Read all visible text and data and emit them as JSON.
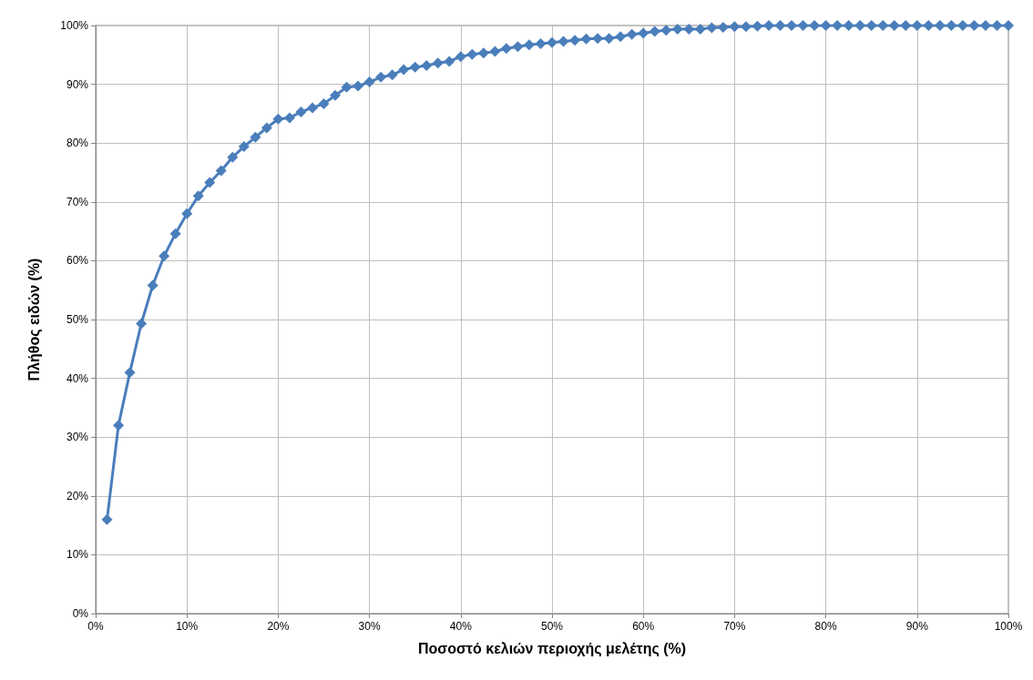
{
  "chart_data": {
    "type": "line",
    "xlabel": "Ποσοστό κελιών περιοχής μελέτης (%)",
    "ylabel": "Πλήθος ειδών (%)",
    "x": [
      1.25,
      2.5,
      3.75,
      5,
      6.25,
      7.5,
      8.75,
      10,
      11.25,
      12.5,
      13.75,
      15,
      16.25,
      17.5,
      18.75,
      20,
      21.25,
      22.5,
      23.75,
      25,
      26.25,
      27.5,
      28.75,
      30,
      31.25,
      32.5,
      33.75,
      35,
      36.25,
      37.5,
      38.75,
      40,
      41.25,
      42.5,
      43.75,
      45,
      46.25,
      47.5,
      48.75,
      50,
      51.25,
      52.5,
      53.75,
      55,
      56.25,
      57.5,
      58.75,
      60,
      61.25,
      62.5,
      63.75,
      65,
      66.25,
      67.5,
      68.75,
      70,
      71.25,
      72.5,
      73.75,
      75,
      76.25,
      77.5,
      78.75,
      80,
      81.25,
      82.5,
      83.75,
      85,
      86.25,
      87.5,
      88.75,
      90,
      91.25,
      92.5,
      93.75,
      95,
      96.25,
      97.5,
      98.75,
      100
    ],
    "series": [
      {
        "color": "#4a7ebb",
        "values": [
          16,
          32,
          41,
          49.3,
          55.8,
          60.8,
          64.6,
          68,
          71,
          73.3,
          75.3,
          77.6,
          79.4,
          81,
          82.6,
          84.1,
          84.3,
          85.3,
          86,
          86.7,
          88.1,
          89.5,
          89.7,
          90.4,
          91.2,
          91.6,
          92.5,
          92.9,
          93.2,
          93.6,
          93.9,
          94.7,
          95.1,
          95.3,
          95.6,
          96.1,
          96.4,
          96.7,
          96.9,
          97.1,
          97.3,
          97.5,
          97.7,
          97.8,
          97.8,
          98.1,
          98.5,
          98.7,
          99,
          99.2,
          99.4,
          99.4,
          99.4,
          99.6,
          99.7,
          99.8,
          99.8,
          99.9,
          100,
          100,
          100,
          100,
          100,
          100,
          100,
          100,
          100,
          100,
          100,
          100,
          100,
          100,
          100,
          100,
          100,
          100,
          100,
          100,
          100,
          100
        ]
      }
    ],
    "xlim": [
      0,
      100
    ],
    "ylim": [
      0,
      100
    ],
    "xticks": [
      {
        "value": 0,
        "label": "0%"
      },
      {
        "value": 10,
        "label": "10%"
      },
      {
        "value": 20,
        "label": "20%"
      },
      {
        "value": 30,
        "label": "30%"
      },
      {
        "value": 40,
        "label": "40%"
      },
      {
        "value": 50,
        "label": "50%"
      },
      {
        "value": 60,
        "label": "60%"
      },
      {
        "value": 70,
        "label": "70%"
      },
      {
        "value": 80,
        "label": "80%"
      },
      {
        "value": 90,
        "label": "90%"
      },
      {
        "value": 100,
        "label": "100%"
      }
    ],
    "yticks": [
      {
        "value": 0,
        "label": "0%"
      },
      {
        "value": 10,
        "label": "10%"
      },
      {
        "value": 20,
        "label": "20%"
      },
      {
        "value": 30,
        "label": "30%"
      },
      {
        "value": 40,
        "label": "40%"
      },
      {
        "value": 50,
        "label": "50%"
      },
      {
        "value": 60,
        "label": "60%"
      },
      {
        "value": 70,
        "label": "70%"
      },
      {
        "value": 80,
        "label": "80%"
      },
      {
        "value": 90,
        "label": "90%"
      },
      {
        "value": 100,
        "label": "100%"
      }
    ],
    "grid": true,
    "marker": "diamond",
    "line_style": "solid"
  }
}
